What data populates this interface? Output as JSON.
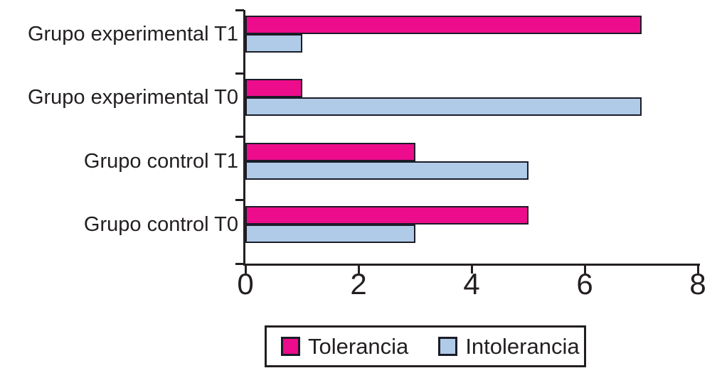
{
  "chart_data": {
    "type": "bar",
    "orientation": "horizontal",
    "title": "",
    "xlabel": "",
    "ylabel": "",
    "categories": [
      "Grupo experimental T1",
      "Grupo experimental T0",
      "Grupo control T1",
      "Grupo control T0"
    ],
    "series": [
      {
        "name": "Tolerancia",
        "color": "#EC0C8C",
        "values": [
          7,
          1,
          3,
          5
        ]
      },
      {
        "name": "Intolerancia",
        "color": "#AFCBE8",
        "values": [
          1,
          7,
          5,
          3
        ]
      }
    ],
    "xlim": [
      0,
      8
    ],
    "x_ticks": [
      "0",
      "2",
      "4",
      "6",
      "8"
    ],
    "grid": false,
    "legend_position": "bottom",
    "bar_border_color": "#1C1C28",
    "axis_color": "#231F20",
    "background_color": "#FFFFFF"
  }
}
